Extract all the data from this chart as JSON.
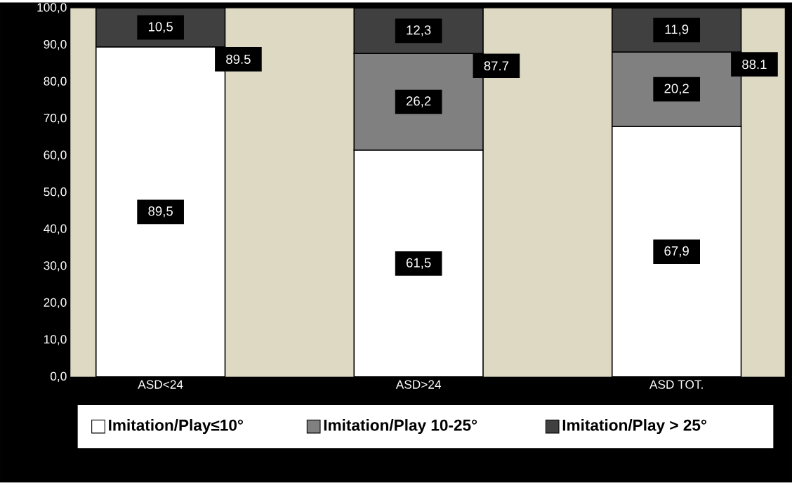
{
  "chart_data": {
    "type": "bar",
    "stacked": true,
    "categories": [
      "ASD<24",
      "ASD>24",
      "ASD TOT."
    ],
    "series": [
      {
        "name": "Imitation/Play≤10°",
        "color": "#ffffff",
        "values": [
          89.5,
          61.5,
          67.9
        ],
        "value_labels": [
          "89,5",
          "61,5",
          "67,9"
        ]
      },
      {
        "name": "Imitation/Play 10-25°",
        "color": "#808080",
        "values": [
          null,
          26.2,
          20.2
        ],
        "value_labels": [
          null,
          "26,2",
          "20,2"
        ]
      },
      {
        "name": "Imitation/Play > 25°",
        "color": "#404040",
        "values": [
          10.5,
          12.3,
          11.9
        ],
        "value_labels": [
          "10,5",
          "12,3",
          "11,9"
        ]
      }
    ],
    "annotations": [
      "89.5",
      "87.7",
      "88.1"
    ],
    "ylim": [
      0,
      100
    ],
    "yticks": [
      {
        "value": 0,
        "label": "0,0"
      },
      {
        "value": 10,
        "label": "10,0"
      },
      {
        "value": 20,
        "label": "20,0"
      },
      {
        "value": 30,
        "label": "30,0"
      },
      {
        "value": 40,
        "label": "40,0"
      },
      {
        "value": 50,
        "label": "50,0"
      },
      {
        "value": 60,
        "label": "60,0"
      },
      {
        "value": 70,
        "label": "70,0"
      },
      {
        "value": 80,
        "label": "80,0"
      },
      {
        "value": 90,
        "label": "90,0"
      },
      {
        "value": 100,
        "label": "100,0"
      }
    ],
    "grid": false,
    "legend": "bottom"
  }
}
